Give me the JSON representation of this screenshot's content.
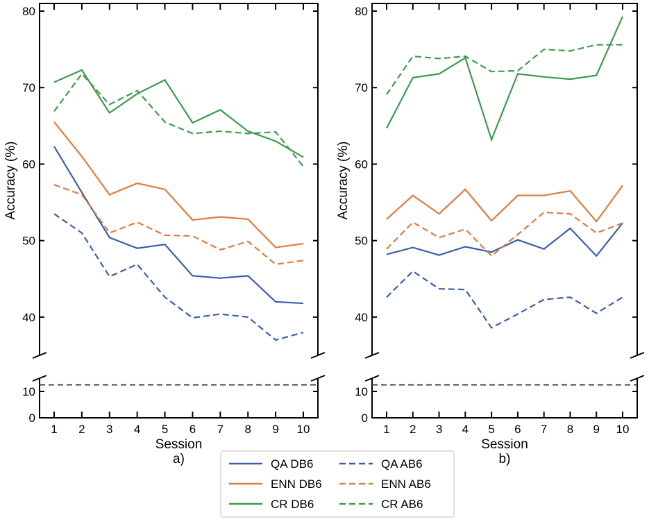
{
  "chart_data": [
    {
      "type": "line",
      "panel_label": "a)",
      "xlabel": "Session",
      "ylabel": "Accuracy (%)",
      "x": [
        1,
        2,
        3,
        4,
        5,
        6,
        7,
        8,
        9,
        10
      ],
      "ylim_upper": [
        35,
        81
      ],
      "ylim_lower": [
        0,
        15
      ],
      "yticks_upper": [
        40,
        50,
        60,
        70,
        80
      ],
      "yticks_lower": [
        0,
        10
      ],
      "broken_axis": true,
      "reference_line": 12.5,
      "series": [
        {
          "name": "QA DB6",
          "style": "solid",
          "color": "#3a5eab",
          "values": [
            62.3,
            56.3,
            50.4,
            49.0,
            49.5,
            45.4,
            45.1,
            45.4,
            42.0,
            41.8
          ]
        },
        {
          "name": "ENN DB6",
          "style": "solid",
          "color": "#e07b3c",
          "values": [
            65.5,
            61.0,
            56.0,
            57.5,
            56.7,
            52.7,
            53.1,
            52.8,
            49.1,
            49.6
          ]
        },
        {
          "name": "CR DB6",
          "style": "solid",
          "color": "#3d9b4c",
          "values": [
            70.7,
            72.3,
            66.7,
            69.2,
            71.0,
            65.4,
            67.1,
            64.3,
            63.0,
            60.9
          ]
        },
        {
          "name": "QA AB6",
          "style": "dashed",
          "color": "#3a5eab",
          "values": [
            53.5,
            51.0,
            45.3,
            46.9,
            42.6,
            39.9,
            40.4,
            40.0,
            37.0,
            38.0
          ]
        },
        {
          "name": "ENN AB6",
          "style": "dashed",
          "color": "#e07b3c",
          "values": [
            57.3,
            56.0,
            51.0,
            52.4,
            50.7,
            50.6,
            48.8,
            49.9,
            46.9,
            47.4
          ]
        },
        {
          "name": "CR AB6",
          "style": "dashed",
          "color": "#3d9b4c",
          "values": [
            66.9,
            71.8,
            67.8,
            69.6,
            65.5,
            64.0,
            64.3,
            64.0,
            64.2,
            59.7
          ]
        }
      ]
    },
    {
      "type": "line",
      "panel_label": "b)",
      "xlabel": "Session",
      "ylabel": "Accuracy (%)",
      "x": [
        1,
        2,
        3,
        4,
        5,
        6,
        7,
        8,
        9,
        10
      ],
      "ylim_upper": [
        35,
        81
      ],
      "ylim_lower": [
        0,
        15
      ],
      "yticks_upper": [
        40,
        50,
        60,
        70,
        80
      ],
      "yticks_lower": [
        0,
        10
      ],
      "broken_axis": true,
      "reference_line": 12.5,
      "series": [
        {
          "name": "QA DB6",
          "style": "solid",
          "color": "#3a5eab",
          "values": [
            48.2,
            49.1,
            48.1,
            49.2,
            48.5,
            50.1,
            48.9,
            51.6,
            48.0,
            52.3
          ]
        },
        {
          "name": "ENN DB6",
          "style": "solid",
          "color": "#e07b3c",
          "values": [
            52.8,
            55.9,
            53.5,
            56.7,
            52.6,
            55.9,
            55.9,
            56.5,
            52.5,
            57.2
          ]
        },
        {
          "name": "CR DB6",
          "style": "solid",
          "color": "#3d9b4c",
          "values": [
            64.7,
            71.3,
            71.8,
            73.9,
            63.2,
            71.8,
            71.4,
            71.1,
            71.6,
            79.3
          ]
        },
        {
          "name": "QA AB6",
          "style": "dashed",
          "color": "#3a5eab",
          "values": [
            42.6,
            46.0,
            43.7,
            43.6,
            38.6,
            40.4,
            42.3,
            42.6,
            40.5,
            42.6
          ]
        },
        {
          "name": "ENN AB6",
          "style": "dashed",
          "color": "#e07b3c",
          "values": [
            48.9,
            52.4,
            50.4,
            51.5,
            48.0,
            50.8,
            53.7,
            53.5,
            51.0,
            52.3
          ]
        },
        {
          "name": "CR AB6",
          "style": "dashed",
          "color": "#3d9b4c",
          "values": [
            69.1,
            74.1,
            73.8,
            74.1,
            72.1,
            72.2,
            75.0,
            74.8,
            75.6,
            75.6
          ]
        }
      ]
    }
  ],
  "legend": {
    "placement": "bottom-center",
    "entries": [
      {
        "label": "QA DB6",
        "style": "solid",
        "color": "#3a5eab"
      },
      {
        "label": "ENN DB6",
        "style": "solid",
        "color": "#e07b3c"
      },
      {
        "label": "CR DB6",
        "style": "solid",
        "color": "#3d9b4c"
      },
      {
        "label": "QA AB6",
        "style": "dashed",
        "color": "#3a5eab"
      },
      {
        "label": "ENN AB6",
        "style": "dashed",
        "color": "#e07b3c"
      },
      {
        "label": "CR AB6",
        "style": "dashed",
        "color": "#3d9b4c"
      }
    ]
  }
}
